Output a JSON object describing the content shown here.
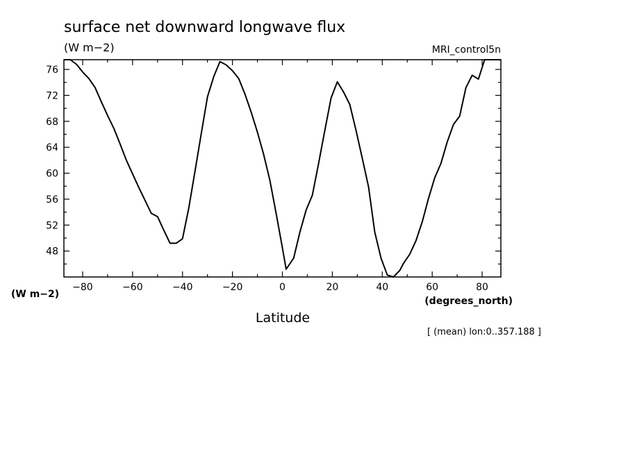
{
  "chart_data": {
    "type": "line",
    "title": "surface net downward longwave flux",
    "units": "(W m−2)",
    "model_label": "MRI_control5n",
    "ylabel": "(W m−2)",
    "xlabel": "Latitude",
    "xunits": "(degrees_north)",
    "footer": "[ (mean) lon:0..357.188 ]",
    "xlim": [
      -87.5,
      87.5
    ],
    "ylim": [
      44,
      77.5
    ],
    "xticks": [
      -80,
      -60,
      -40,
      -20,
      0,
      20,
      40,
      60,
      80
    ],
    "xtick_labels": [
      "−80",
      "−60",
      "−40",
      "−20",
      "0",
      "20",
      "40",
      "60",
      "80"
    ],
    "yticks": [
      48,
      52,
      56,
      60,
      64,
      68,
      72,
      76
    ],
    "ytick_labels": [
      "48",
      "52",
      "56",
      "60",
      "64",
      "68",
      "72",
      "76"
    ],
    "grid": false,
    "series": [
      {
        "x": [
          -87.5,
          -85,
          -82.5,
          -80,
          -77.5,
          -75,
          -72.5,
          -70,
          -67.5,
          -65,
          -62.5,
          -60,
          -57.5,
          -55,
          -52.5,
          -50,
          -47.5,
          -45,
          -42.5,
          -40,
          -37.5,
          -35,
          -32.5,
          -30,
          -27.5,
          -25,
          -22.5,
          -20,
          -17.5,
          -15,
          -12.5,
          -10,
          -7.5,
          -5,
          -2.5,
          0,
          1.5,
          4.5,
          7,
          9.5,
          12,
          14.5,
          17,
          19.5,
          22,
          24.5,
          27,
          29.5,
          32,
          34.5,
          37,
          39.5,
          42,
          44.5,
          47,
          48.5,
          51,
          53.5,
          56,
          58.5,
          61,
          63.5,
          66,
          68.5,
          71,
          73.5,
          76,
          78.5,
          81,
          83.5,
          86,
          87.5
        ],
        "y": [
          77.5,
          77.5,
          76.8,
          75.6,
          74.6,
          73.2,
          71,
          68.9,
          66.9,
          64.5,
          62,
          59.9,
          57.8,
          55.8,
          53.8,
          53.3,
          51.2,
          49.2,
          49.2,
          49.9,
          54.6,
          60.3,
          66.1,
          71.8,
          74.9,
          77.2,
          76.7,
          75.8,
          74.6,
          72.2,
          69.4,
          66.3,
          62.9,
          58.9,
          53.8,
          48.5,
          45.2,
          46.9,
          50.9,
          54.3,
          56.6,
          61.5,
          66.6,
          71.6,
          74.1,
          72.5,
          70.6,
          66.6,
          62.3,
          57.9,
          50.9,
          46.9,
          44.3,
          44,
          45,
          46.1,
          47.5,
          49.6,
          52.5,
          56.1,
          59.3,
          61.5,
          64.8,
          67.5,
          68.8,
          73.2,
          75.1,
          74.5,
          77.5,
          77.5,
          77.5,
          77.5
        ]
      }
    ]
  }
}
